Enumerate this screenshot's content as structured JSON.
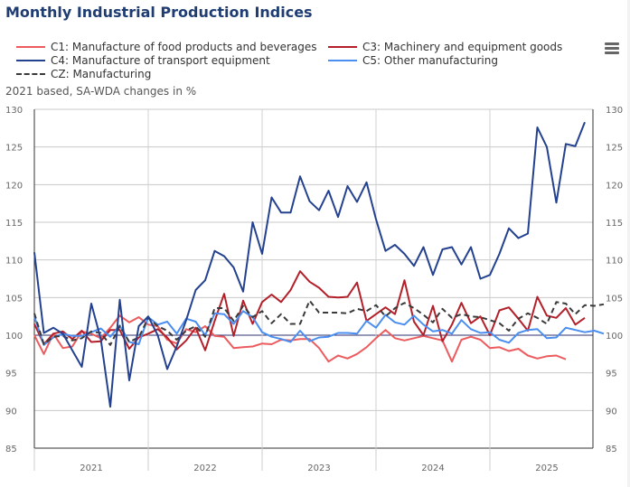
{
  "title": "Monthly Industrial Production Indices",
  "subtitle": "2021 based, SA-WDA changes in %",
  "menu_icon": "hamburger-menu-icon",
  "chart_data": {
    "type": "line",
    "title": "Monthly Industrial Production Indices",
    "ylabel": "2021 based, SA-WDA changes in %",
    "xlabel": "",
    "ylim": [
      85,
      130
    ],
    "yticks": [
      85,
      90,
      95,
      100,
      105,
      110,
      115,
      120,
      125,
      130
    ],
    "y_tick_labels": [
      "85",
      "90",
      "95",
      "100",
      "105",
      "110",
      "115",
      "120",
      "125",
      "130"
    ],
    "x_start": "2021-01",
    "x_frequency": "monthly",
    "x_tick_labels": [
      "2021",
      "2022",
      "2023",
      "2024",
      "2025"
    ],
    "reference_line": 100,
    "grid": true,
    "legend_position": "top",
    "series": [
      {
        "name": "C1: Manufacture of food products and beverages",
        "color": "#ec5b5e",
        "dash": false,
        "values": [
          100,
          97.5,
          100.2,
          98.3,
          98.5,
          100.5,
          100.2,
          99.6,
          101,
          102.6,
          101.7,
          102.4,
          101.4,
          101.2,
          99.4,
          98.9,
          100.8,
          100.4,
          101.2,
          99.9,
          99.8,
          98.3,
          98.4,
          98.5,
          98.9,
          98.8,
          99.4,
          99.3,
          99.5,
          99.5,
          98.3,
          96.5,
          97.3,
          96.9,
          97.5,
          98.4,
          99.6,
          100.7,
          99.6,
          99.3,
          99.6,
          99.9,
          99.6,
          99.3,
          96.5,
          99.4,
          99.8,
          99.4,
          98.3,
          98.4,
          97.9,
          98.2,
          97.3,
          96.9,
          97.2,
          97.3,
          96.8
        ]
      },
      {
        "name": "C3: Machinery and equipment goods",
        "color": "#b3202a",
        "dash": false,
        "values": [
          101.5,
          98.8,
          100.2,
          100.5,
          99.5,
          100.6,
          99.1,
          99.2,
          100.7,
          100.7,
          98.2,
          99.7,
          100.2,
          100.8,
          99.7,
          98.1,
          99.3,
          101,
          98,
          101.9,
          105.5,
          99.9,
          104.6,
          101.5,
          104.4,
          105.4,
          104.4,
          106,
          108.5,
          107.1,
          106.3,
          105.1,
          105,
          105.1,
          107,
          101.9,
          102.8,
          103.7,
          102.8,
          107.3,
          101.8,
          100,
          103.9,
          99.2,
          101.4,
          104.3,
          101.6,
          102.5,
          100,
          103.3,
          103.7,
          102.2,
          100.6,
          105.1,
          102.6,
          102.3,
          103.6,
          101.4,
          102.3
        ]
      },
      {
        "name": "C4: Manufacture of transport equipment",
        "color": "#23418f",
        "dash": false,
        "values": [
          111,
          100.3,
          101,
          100.2,
          98,
          95.8,
          104.2,
          99.5,
          90.5,
          104.7,
          94,
          101.2,
          102.5,
          100,
          95.5,
          98.5,
          102,
          106,
          107.3,
          111.2,
          110.5,
          109,
          105.8,
          115,
          110.8,
          118.3,
          116.3,
          116.3,
          121.1,
          117.8,
          116.6,
          119.2,
          115.7,
          119.8,
          117.7,
          120.3,
          115.4,
          111.2,
          112,
          110.8,
          109.2,
          111.7,
          108,
          111.4,
          111.7,
          109.4,
          111.7,
          107.5,
          108,
          110.8,
          114.2,
          112.9,
          113.5,
          127.6,
          125,
          117.6,
          125.4,
          125.1,
          128.3
        ]
      },
      {
        "name": "C5: Other manufacturing",
        "color": "#4a8ef0",
        "dash": false,
        "values": [
          102.5,
          98.7,
          99.7,
          100.2,
          99.9,
          99.9,
          100.4,
          100.9,
          99.8,
          101.3,
          99.1,
          98.8,
          102.4,
          101.4,
          101.8,
          100.2,
          102.2,
          101.8,
          100,
          102.9,
          102.8,
          101.5,
          103.2,
          102.4,
          100.4,
          99.8,
          99.5,
          99.1,
          100.6,
          99.2,
          99.7,
          99.8,
          100.3,
          100.3,
          100.2,
          101.9,
          101,
          102.7,
          101.7,
          101.4,
          102.6,
          101.4,
          100.5,
          100.7,
          100.2,
          102,
          100.8,
          100.3,
          100.4,
          99.4,
          99,
          100.3,
          100.7,
          100.8,
          99.6,
          99.7,
          101,
          100.7,
          100.4,
          100.6,
          100.2
        ]
      },
      {
        "name": "CZ: Manufacturing",
        "color": "#3a3a3a",
        "dash": true,
        "values": [
          102.9,
          98.8,
          99.8,
          99.9,
          99.3,
          99.6,
          100.5,
          100.3,
          98.7,
          101.2,
          99.1,
          99.7,
          102.3,
          101.2,
          100.6,
          99.4,
          100.6,
          101.2,
          99.8,
          103.6,
          103.6,
          101.9,
          103.9,
          102.4,
          103.2,
          101.6,
          102.8,
          101.5,
          101.5,
          104.6,
          103,
          103,
          103,
          102.9,
          103.5,
          103.2,
          104,
          102.5,
          103.6,
          104.3,
          103.6,
          102.7,
          101.7,
          103.5,
          102.3,
          102.8,
          102.5,
          102.4,
          102,
          101.6,
          100.6,
          102.2,
          102.9,
          102.3,
          101.5,
          104.4,
          104.2,
          102.8,
          104,
          103.9,
          104.1
        ]
      }
    ]
  }
}
